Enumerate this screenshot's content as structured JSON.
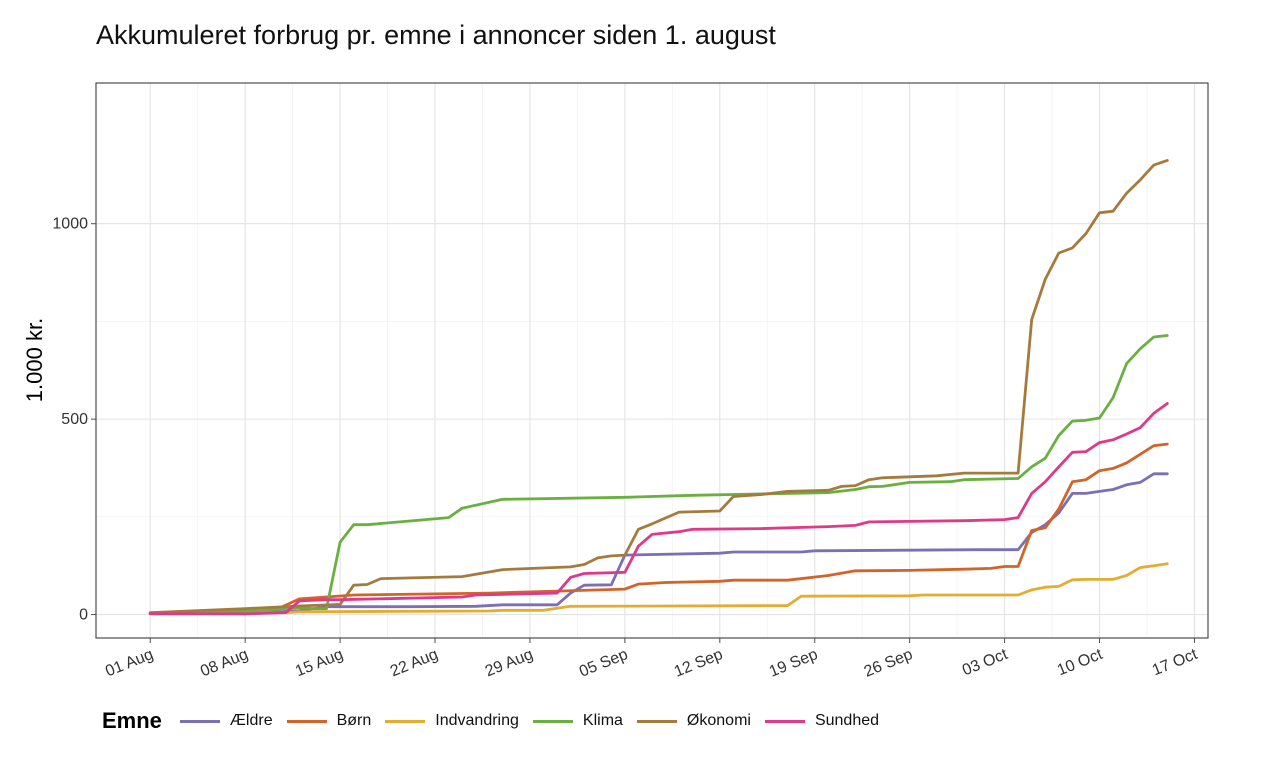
{
  "chart_data": {
    "type": "line",
    "title": "Akkumuleret forbrug pr. emne i annoncer siden 1. august",
    "ylabel": "1.000 kr.",
    "xlabel": "",
    "legend_title": "Emne",
    "legend_position": "bottom",
    "grid": true,
    "xlim": [
      "2021-07-28",
      "2021-10-18"
    ],
    "ylim": [
      -60,
      1360
    ],
    "x_ticks": [
      {
        "date": "2021-08-01",
        "label": "01 Aug"
      },
      {
        "date": "2021-08-08",
        "label": "08 Aug"
      },
      {
        "date": "2021-08-15",
        "label": "15 Aug"
      },
      {
        "date": "2021-08-22",
        "label": "22 Aug"
      },
      {
        "date": "2021-08-29",
        "label": "29 Aug"
      },
      {
        "date": "2021-09-05",
        "label": "05 Sep"
      },
      {
        "date": "2021-09-12",
        "label": "12 Sep"
      },
      {
        "date": "2021-09-19",
        "label": "19 Sep"
      },
      {
        "date": "2021-09-26",
        "label": "26 Sep"
      },
      {
        "date": "2021-10-03",
        "label": "03 Oct"
      },
      {
        "date": "2021-10-10",
        "label": "10 Oct"
      },
      {
        "date": "2021-10-17",
        "label": "17 Oct"
      }
    ],
    "y_ticks": [
      {
        "value": 0,
        "label": "0"
      },
      {
        "value": 500,
        "label": "500"
      },
      {
        "value": 1000,
        "label": "1000"
      }
    ],
    "series": [
      {
        "name": "Ældre",
        "color": "#7b6fb5",
        "points": [
          [
            "2021-08-01",
            3
          ],
          [
            "2021-08-10",
            6
          ],
          [
            "2021-08-12",
            10
          ],
          [
            "2021-08-14",
            20
          ],
          [
            "2021-08-20",
            20
          ],
          [
            "2021-08-25",
            21
          ],
          [
            "2021-08-27",
            25
          ],
          [
            "2021-08-31",
            25
          ],
          [
            "2021-09-01",
            55
          ],
          [
            "2021-09-02",
            75
          ],
          [
            "2021-09-04",
            76
          ],
          [
            "2021-09-05",
            152
          ],
          [
            "2021-09-12",
            157
          ],
          [
            "2021-09-13",
            160
          ],
          [
            "2021-09-18",
            160
          ],
          [
            "2021-09-19",
            163
          ],
          [
            "2021-10-01",
            166
          ],
          [
            "2021-10-02",
            166
          ],
          [
            "2021-10-04",
            166
          ],
          [
            "2021-10-05",
            210
          ],
          [
            "2021-10-06",
            230
          ],
          [
            "2021-10-07",
            260
          ],
          [
            "2021-10-08",
            310
          ],
          [
            "2021-10-09",
            310
          ],
          [
            "2021-10-10",
            315
          ],
          [
            "2021-10-11",
            320
          ],
          [
            "2021-10-12",
            332
          ],
          [
            "2021-10-13",
            338
          ],
          [
            "2021-10-14",
            360
          ],
          [
            "2021-10-15",
            360
          ]
        ]
      },
      {
        "name": "Børn",
        "color": "#d2642a",
        "points": [
          [
            "2021-08-01",
            4
          ],
          [
            "2021-08-10",
            8
          ],
          [
            "2021-08-12",
            40
          ],
          [
            "2021-08-14",
            45
          ],
          [
            "2021-08-16",
            50
          ],
          [
            "2021-08-26",
            55
          ],
          [
            "2021-08-31",
            60
          ],
          [
            "2021-09-05",
            65
          ],
          [
            "2021-09-06",
            78
          ],
          [
            "2021-09-08",
            82
          ],
          [
            "2021-09-12",
            85
          ],
          [
            "2021-09-13",
            88
          ],
          [
            "2021-09-17",
            88
          ],
          [
            "2021-09-20",
            100
          ],
          [
            "2021-09-22",
            112
          ],
          [
            "2021-09-26",
            113
          ],
          [
            "2021-09-30",
            116
          ],
          [
            "2021-10-02",
            118
          ],
          [
            "2021-10-03",
            123
          ],
          [
            "2021-10-04",
            123
          ],
          [
            "2021-10-05",
            215
          ],
          [
            "2021-10-06",
            222
          ],
          [
            "2021-10-07",
            270
          ],
          [
            "2021-10-08",
            340
          ],
          [
            "2021-10-09",
            345
          ],
          [
            "2021-10-10",
            368
          ],
          [
            "2021-10-11",
            374
          ],
          [
            "2021-10-12",
            388
          ],
          [
            "2021-10-13",
            410
          ],
          [
            "2021-10-14",
            432
          ],
          [
            "2021-10-15",
            436
          ]
        ]
      },
      {
        "name": "Indvandring",
        "color": "#e4ac33",
        "points": [
          [
            "2021-08-01",
            3
          ],
          [
            "2021-08-11",
            5
          ],
          [
            "2021-08-12",
            7
          ],
          [
            "2021-08-26",
            9
          ],
          [
            "2021-08-27",
            11
          ],
          [
            "2021-08-30",
            11
          ],
          [
            "2021-09-01",
            21
          ],
          [
            "2021-09-17",
            23
          ],
          [
            "2021-09-18",
            47
          ],
          [
            "2021-09-26",
            48
          ],
          [
            "2021-09-27",
            50
          ],
          [
            "2021-10-04",
            50
          ],
          [
            "2021-10-05",
            63
          ],
          [
            "2021-10-06",
            70
          ],
          [
            "2021-10-07",
            72
          ],
          [
            "2021-10-08",
            89
          ],
          [
            "2021-10-09",
            90
          ],
          [
            "2021-10-11",
            90
          ],
          [
            "2021-10-12",
            100
          ],
          [
            "2021-10-13",
            120
          ],
          [
            "2021-10-14",
            125
          ],
          [
            "2021-10-15",
            130
          ]
        ]
      },
      {
        "name": "Klima",
        "color": "#6ab041",
        "points": [
          [
            "2021-08-01",
            3
          ],
          [
            "2021-08-09",
            10
          ],
          [
            "2021-08-12",
            18
          ],
          [
            "2021-08-13",
            15
          ],
          [
            "2021-08-14",
            15
          ],
          [
            "2021-08-15",
            185
          ],
          [
            "2021-08-16",
            230
          ],
          [
            "2021-08-17",
            230
          ],
          [
            "2021-08-23",
            248
          ],
          [
            "2021-08-24",
            272
          ],
          [
            "2021-08-27",
            295
          ],
          [
            "2021-09-05",
            300
          ],
          [
            "2021-09-10",
            305
          ],
          [
            "2021-09-20",
            312
          ],
          [
            "2021-09-22",
            320
          ],
          [
            "2021-09-23",
            327
          ],
          [
            "2021-09-24",
            328
          ],
          [
            "2021-09-26",
            338
          ],
          [
            "2021-09-29",
            340
          ],
          [
            "2021-09-30",
            345
          ],
          [
            "2021-10-04",
            348
          ],
          [
            "2021-10-05",
            378
          ],
          [
            "2021-10-06",
            400
          ],
          [
            "2021-10-07",
            458
          ],
          [
            "2021-10-08",
            495
          ],
          [
            "2021-10-09",
            497
          ],
          [
            "2021-10-10",
            503
          ],
          [
            "2021-10-11",
            555
          ],
          [
            "2021-10-12",
            642
          ],
          [
            "2021-10-13",
            680
          ],
          [
            "2021-10-14",
            710
          ],
          [
            "2021-10-15",
            714
          ]
        ]
      },
      {
        "name": "Økonomi",
        "color": "#a57b3d",
        "points": [
          [
            "2021-08-01",
            5
          ],
          [
            "2021-08-08",
            15
          ],
          [
            "2021-08-12",
            22
          ],
          [
            "2021-08-15",
            26
          ],
          [
            "2021-08-16",
            75
          ],
          [
            "2021-08-17",
            77
          ],
          [
            "2021-08-18",
            92
          ],
          [
            "2021-08-24",
            97
          ],
          [
            "2021-08-27",
            115
          ],
          [
            "2021-09-01",
            122
          ],
          [
            "2021-09-02",
            128
          ],
          [
            "2021-09-03",
            145
          ],
          [
            "2021-09-04",
            150
          ],
          [
            "2021-09-05",
            152
          ],
          [
            "2021-09-06",
            218
          ],
          [
            "2021-09-07",
            232
          ],
          [
            "2021-09-09",
            262
          ],
          [
            "2021-09-12",
            265
          ],
          [
            "2021-09-13",
            302
          ],
          [
            "2021-09-15",
            307
          ],
          [
            "2021-09-17",
            315
          ],
          [
            "2021-09-20",
            318
          ],
          [
            "2021-09-21",
            328
          ],
          [
            "2021-09-22",
            330
          ],
          [
            "2021-09-23",
            345
          ],
          [
            "2021-09-24",
            350
          ],
          [
            "2021-09-28",
            355
          ],
          [
            "2021-09-30",
            362
          ],
          [
            "2021-10-04",
            362
          ],
          [
            "2021-10-05",
            755
          ],
          [
            "2021-10-06",
            858
          ],
          [
            "2021-10-07",
            925
          ],
          [
            "2021-10-08",
            938
          ],
          [
            "2021-10-09",
            975
          ],
          [
            "2021-10-10",
            1028
          ],
          [
            "2021-10-11",
            1032
          ],
          [
            "2021-10-12",
            1078
          ],
          [
            "2021-10-13",
            1112
          ],
          [
            "2021-10-14",
            1150
          ],
          [
            "2021-10-15",
            1162
          ]
        ]
      },
      {
        "name": "Sundhed",
        "color": "#de3a8a",
        "points": [
          [
            "2021-08-01",
            2
          ],
          [
            "2021-08-08",
            2
          ],
          [
            "2021-08-10",
            4
          ],
          [
            "2021-08-11",
            5
          ],
          [
            "2021-08-12",
            35
          ],
          [
            "2021-08-14",
            38
          ],
          [
            "2021-08-15",
            38
          ],
          [
            "2021-08-24",
            45
          ],
          [
            "2021-08-25",
            50
          ],
          [
            "2021-08-31",
            55
          ],
          [
            "2021-09-01",
            95
          ],
          [
            "2021-09-02",
            105
          ],
          [
            "2021-09-05",
            108
          ],
          [
            "2021-09-06",
            175
          ],
          [
            "2021-09-07",
            205
          ],
          [
            "2021-09-09",
            212
          ],
          [
            "2021-09-10",
            218
          ],
          [
            "2021-09-15",
            220
          ],
          [
            "2021-09-20",
            225
          ],
          [
            "2021-09-22",
            228
          ],
          [
            "2021-09-23",
            237
          ],
          [
            "2021-09-30",
            240
          ],
          [
            "2021-10-03",
            243
          ],
          [
            "2021-10-04",
            248
          ],
          [
            "2021-10-05",
            310
          ],
          [
            "2021-10-06",
            340
          ],
          [
            "2021-10-07",
            378
          ],
          [
            "2021-10-08",
            415
          ],
          [
            "2021-10-09",
            417
          ],
          [
            "2021-10-10",
            440
          ],
          [
            "2021-10-11",
            447
          ],
          [
            "2021-10-12",
            462
          ],
          [
            "2021-10-13",
            478
          ],
          [
            "2021-10-14",
            515
          ],
          [
            "2021-10-15",
            540
          ]
        ]
      }
    ]
  }
}
